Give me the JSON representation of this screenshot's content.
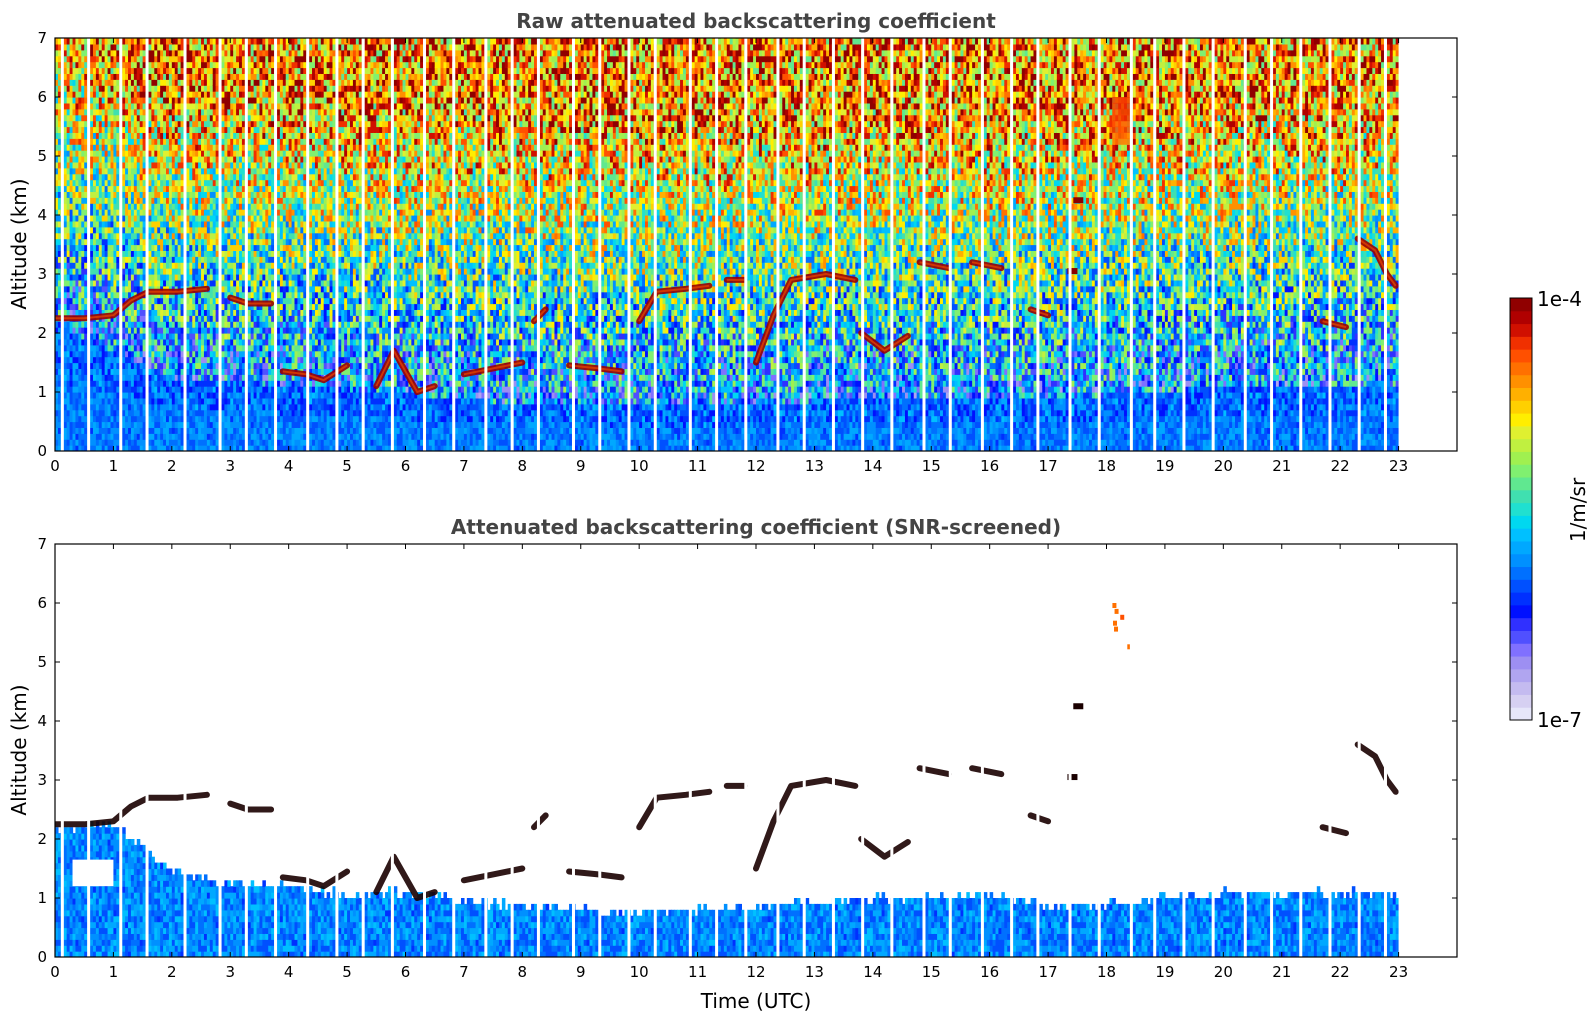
{
  "chart_data": [
    {
      "type": "heatmap",
      "title": "Raw attenuated backscattering coefficient",
      "xlabel": "",
      "ylabel": "Altitude (km)",
      "xlim": [
        0,
        24
      ],
      "ylim": [
        0,
        7
      ],
      "xticks": [
        "0",
        "1",
        "2",
        "3",
        "4",
        "5",
        "6",
        "7",
        "8",
        "9",
        "10",
        "11",
        "12",
        "13",
        "14",
        "15",
        "16",
        "17",
        "18",
        "19",
        "20",
        "21",
        "22",
        "23"
      ],
      "yticks": [
        "0",
        "1",
        "2",
        "3",
        "4",
        "5",
        "6",
        "7"
      ],
      "data_end_hour": 23,
      "gap_hours": [
        0.1,
        0.55,
        1.1,
        1.55,
        2.2,
        2.8,
        3.25,
        3.75,
        4.3,
        4.8,
        5.25,
        5.75,
        6.3,
        6.8,
        7.35,
        7.8,
        8.25,
        8.85,
        9.3,
        9.8,
        10.25,
        10.85,
        11.3,
        11.8,
        12.35,
        12.8,
        13.3,
        13.8,
        14.3,
        14.85,
        15.3,
        15.85,
        16.35,
        16.8,
        17.35,
        17.85,
        18.4,
        18.8,
        19.3,
        19.8,
        20.35,
        20.8,
        21.3,
        21.8,
        22.3,
        22.75
      ],
      "cloud_layers": [
        {
          "points": [
            [
              0,
              2.25
            ],
            [
              0.5,
              2.25
            ],
            [
              1,
              2.3
            ],
            [
              1.3,
              2.55
            ],
            [
              1.6,
              2.7
            ],
            [
              2.1,
              2.7
            ],
            [
              2.6,
              2.75
            ]
          ]
        },
        {
          "points": [
            [
              3.0,
              2.6
            ],
            [
              3.3,
              2.5
            ],
            [
              3.7,
              2.5
            ]
          ]
        },
        {
          "points": [
            [
              3.9,
              1.35
            ],
            [
              4.3,
              1.3
            ],
            [
              4.6,
              1.2
            ],
            [
              5.0,
              1.45
            ]
          ]
        },
        {
          "points": [
            [
              5.5,
              1.1
            ],
            [
              5.8,
              1.7
            ],
            [
              6.2,
              1.0
            ],
            [
              6.5,
              1.1
            ]
          ]
        },
        {
          "points": [
            [
              7.0,
              1.3
            ],
            [
              7.5,
              1.4
            ],
            [
              8.0,
              1.5
            ]
          ]
        },
        {
          "points": [
            [
              8.2,
              2.2
            ],
            [
              8.4,
              2.4
            ]
          ]
        },
        {
          "points": [
            [
              8.8,
              1.45
            ],
            [
              9.3,
              1.4
            ],
            [
              9.7,
              1.35
            ]
          ]
        },
        {
          "points": [
            [
              10.0,
              2.2
            ],
            [
              10.3,
              2.7
            ],
            [
              10.8,
              2.75
            ],
            [
              11.2,
              2.8
            ]
          ]
        },
        {
          "points": [
            [
              11.5,
              2.9
            ],
            [
              11.8,
              2.9
            ]
          ]
        },
        {
          "points": [
            [
              12.0,
              1.5
            ],
            [
              12.3,
              2.3
            ],
            [
              12.6,
              2.9
            ],
            [
              13.2,
              3.0
            ],
            [
              13.7,
              2.9
            ]
          ]
        },
        {
          "points": [
            [
              13.8,
              2.0
            ],
            [
              14.2,
              1.7
            ],
            [
              14.6,
              1.95
            ]
          ]
        },
        {
          "points": [
            [
              14.8,
              3.2
            ],
            [
              15.3,
              3.1
            ]
          ]
        },
        {
          "points": [
            [
              15.7,
              3.2
            ],
            [
              16.2,
              3.1
            ]
          ]
        },
        {
          "points": [
            [
              16.7,
              2.4
            ],
            [
              17.0,
              2.3
            ]
          ]
        },
        {
          "points": [
            [
              17.4,
              3.05
            ]
          ]
        },
        {
          "points": [
            [
              17.5,
              4.25
            ]
          ]
        },
        {
          "points": [
            [
              21.7,
              2.2
            ],
            [
              22.1,
              2.1
            ]
          ]
        },
        {
          "points": [
            [
              22.3,
              3.6
            ],
            [
              22.6,
              3.4
            ],
            [
              22.8,
              3.0
            ],
            [
              22.95,
              2.8
            ]
          ]
        }
      ],
      "boundary_layer_top": [
        [
          0,
          2.1
        ],
        [
          2,
          1.2
        ],
        [
          5,
          1.0
        ],
        [
          8,
          0.75
        ],
        [
          11,
          0.7
        ],
        [
          14,
          0.85
        ],
        [
          17,
          0.85
        ],
        [
          18,
          0.9
        ],
        [
          20,
          1.05
        ],
        [
          23,
          1.05
        ]
      ],
      "elevated_aerosol": [
        {
          "hour": 18.1,
          "from": 5.2,
          "to": 5.9
        }
      ]
    },
    {
      "type": "heatmap",
      "title": "Attenuated backscattering coefficient (SNR-screened)",
      "xlabel": "Time (UTC)",
      "ylabel": "Altitude (km)",
      "xlim": [
        0,
        24
      ],
      "ylim": [
        0,
        7
      ],
      "xticks": [
        "0",
        "1",
        "2",
        "3",
        "4",
        "5",
        "6",
        "7",
        "8",
        "9",
        "10",
        "11",
        "12",
        "13",
        "14",
        "15",
        "16",
        "17",
        "18",
        "19",
        "20",
        "21",
        "22",
        "23"
      ],
      "yticks": [
        "0",
        "1",
        "2",
        "3",
        "4",
        "5",
        "6",
        "7"
      ],
      "screened_top": [
        [
          0,
          2.1
        ],
        [
          1,
          2.2
        ],
        [
          2,
          1.4
        ],
        [
          3,
          1.2
        ],
        [
          4,
          1.15
        ],
        [
          5,
          1.0
        ],
        [
          6,
          1.05
        ],
        [
          7,
          0.9
        ],
        [
          8,
          0.8
        ],
        [
          9,
          0.75
        ],
        [
          10,
          0.7
        ],
        [
          11,
          0.75
        ],
        [
          12,
          0.8
        ],
        [
          13,
          0.9
        ],
        [
          14,
          0.95
        ],
        [
          15,
          0.95
        ],
        [
          16,
          1.0
        ],
        [
          17,
          0.8
        ],
        [
          18,
          0.85
        ],
        [
          19,
          0.95
        ],
        [
          20,
          1.05
        ],
        [
          21,
          1.0
        ],
        [
          22,
          1.05
        ],
        [
          23,
          1.0
        ]
      ]
    }
  ],
  "colorbar": {
    "min_label": "1e-7",
    "max_label": "1e-4",
    "label": "1/m/sr",
    "colors": [
      "#e6e6fa",
      "#d6d0f2",
      "#c4bbf0",
      "#b0a5f0",
      "#9d8ff2",
      "#8070ff",
      "#5050ff",
      "#3030ff",
      "#0010ff",
      "#0030ff",
      "#0050ff",
      "#0070ff",
      "#0090ff",
      "#00a8ff",
      "#00c0ff",
      "#00d8f0",
      "#20e0d0",
      "#40e0b0",
      "#60e890",
      "#80f070",
      "#a0f050",
      "#c0f040",
      "#e0f030",
      "#ffee00",
      "#ffd000",
      "#ffb000",
      "#ff9000",
      "#ff7000",
      "#ff5000",
      "#f03000",
      "#d01000",
      "#b00000",
      "#900000"
    ]
  }
}
